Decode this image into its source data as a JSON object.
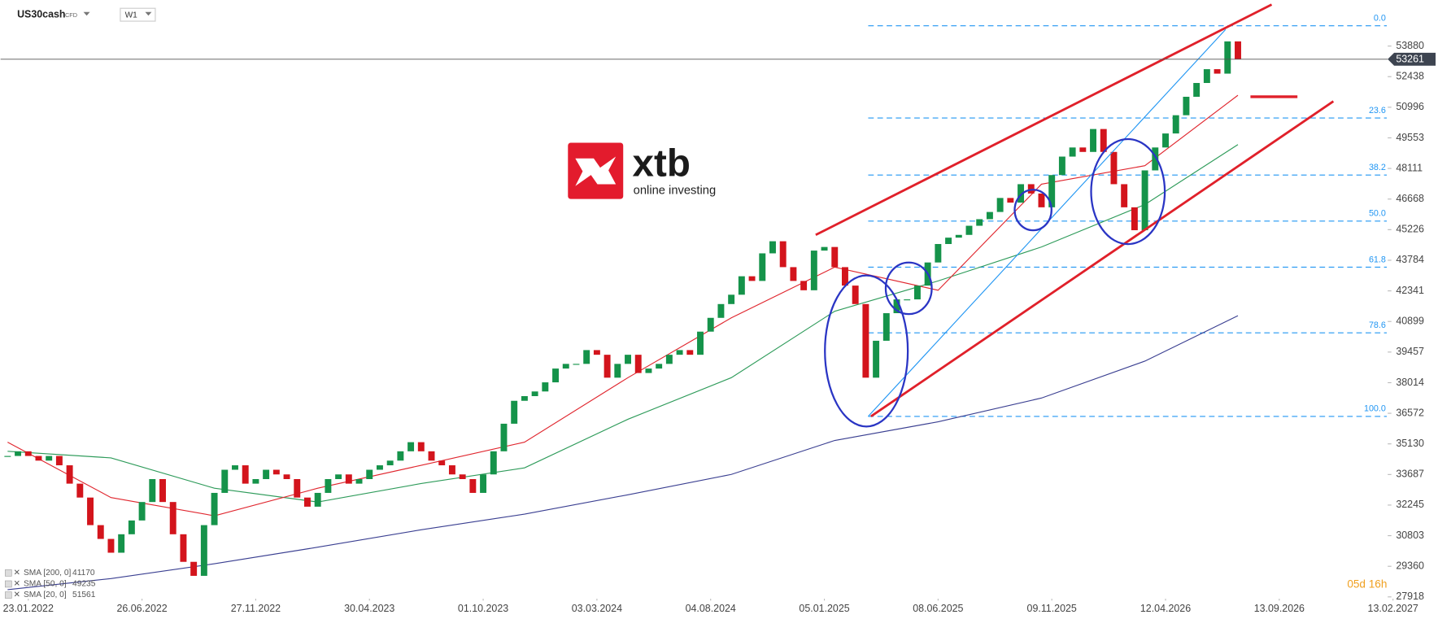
{
  "header": {
    "symbol": "US30cash",
    "instrument_type": "CFD",
    "timeframe": "W1"
  },
  "logo": {
    "name": "xtb",
    "tagline": "online investing"
  },
  "countdown": "05d 16h",
  "chart_data": {
    "type": "candlestick",
    "values": [
      34560,
      34780,
      34560,
      34340,
      34560,
      34120,
      33255,
      32600,
      31300,
      30650,
      30000,
      30870,
      31520,
      32390,
      33470,
      32390,
      30870,
      29570,
      28910,
      31300,
      32820,
      33910,
      34120,
      33255,
      33470,
      33910,
      33690,
      33470,
      32600,
      32170,
      32820,
      33470,
      33690,
      33255,
      33470,
      33910,
      34120,
      34340,
      34780,
      35210,
      34780,
      34340,
      34120,
      33690,
      33470,
      32820,
      33690,
      34780,
      36080,
      37160,
      37380,
      37600,
      38030,
      38680,
      38900,
      38900,
      39550,
      39330,
      38250,
      38900,
      39330,
      38470,
      38680,
      38900,
      39330,
      39550,
      39330,
      40420,
      41070,
      41720,
      42160,
      43030,
      42810,
      44110,
      44680,
      43460,
      42810,
      42370,
      44240,
      44410,
      43460,
      42590,
      41720,
      38250,
      39990,
      41290,
      41940,
      41940,
      42590,
      43680,
      44550,
      44850,
      44980,
      45410,
      45720,
      46060,
      46720,
      46500,
      47370,
      46930,
      46280,
      47800,
      48670,
      49100,
      48890,
      49970,
      48890,
      47370,
      46280,
      45200,
      48020,
      49100,
      49760,
      50620,
      51490,
      52140,
      52790,
      52580,
      54100,
      53261
    ],
    "colors": {
      "up": "#15934a",
      "down": "#d3141c"
    },
    "current_price": 53261,
    "xlim": [
      -0.68,
      134.2
    ],
    "xticks": [
      {
        "value": 2,
        "label": "23.01.2022"
      },
      {
        "value": 13,
        "label": "26.06.2022"
      },
      {
        "value": 24,
        "label": "27.11.2022"
      },
      {
        "value": 35,
        "label": "30.04.2023"
      },
      {
        "value": 46,
        "label": "01.10.2023"
      },
      {
        "value": 57,
        "label": "03.03.2024"
      },
      {
        "value": 68,
        "label": "04.08.2024"
      },
      {
        "value": 79,
        "label": "05.01.2025"
      },
      {
        "value": 90,
        "label": "08.06.2025"
      },
      {
        "value": 101,
        "label": "09.11.2025"
      },
      {
        "value": 112,
        "label": "12.04.2026"
      },
      {
        "value": 123,
        "label": "13.09.2026"
      },
      {
        "value": 134,
        "label": "13.02.2027"
      }
    ],
    "ylim": [
      27744,
      56051
    ],
    "yticks": [
      53880,
      52438,
      50996,
      49553,
      48111,
      46668,
      45226,
      43784,
      42341,
      40899,
      39457,
      38014,
      36572,
      35130,
      33687,
      32245,
      30803,
      29360,
      27918
    ],
    "indicators": [
      {
        "name": "SMA [200, 0]",
        "value": 41170,
        "color": "#3a3f91",
        "x": [
          0,
          10,
          20,
          30,
          40,
          50,
          60,
          70,
          80,
          90,
          100,
          110,
          119
        ],
        "values": [
          28260,
          28780,
          29480,
          30260,
          31080,
          31820,
          32730,
          33690,
          35290,
          36170,
          37290,
          39030,
          41170
        ]
      },
      {
        "name": "SMA [50, 0]",
        "value": 49235,
        "color": "#2e9b5a",
        "x": [
          0,
          10,
          20,
          30,
          40,
          50,
          60,
          70,
          80,
          90,
          100,
          110,
          119
        ],
        "values": [
          34780,
          34470,
          33040,
          32390,
          33260,
          34000,
          36290,
          38250,
          41380,
          42810,
          44410,
          46410,
          49235
        ]
      },
      {
        "name": "SMA [20, 0]",
        "value": 51561,
        "color": "#e0262e",
        "x": [
          0,
          10,
          20,
          30,
          40,
          50,
          60,
          70,
          80,
          90,
          100,
          110,
          119
        ],
        "values": [
          35210,
          32600,
          31740,
          33040,
          34120,
          35210,
          38250,
          41070,
          43460,
          42370,
          47370,
          48240,
          51561
        ]
      }
    ],
    "fibonacci": {
      "high": 54835,
      "low": 36425,
      "color": "#2196f3",
      "levels": [
        {
          "value": 0,
          "label": "0.0"
        },
        23.6,
        38.2,
        {
          "value": 50,
          "label": "50.0"
        },
        61.8,
        78.6,
        {
          "value": 100,
          "label": "100.0"
        }
      ]
    }
  }
}
